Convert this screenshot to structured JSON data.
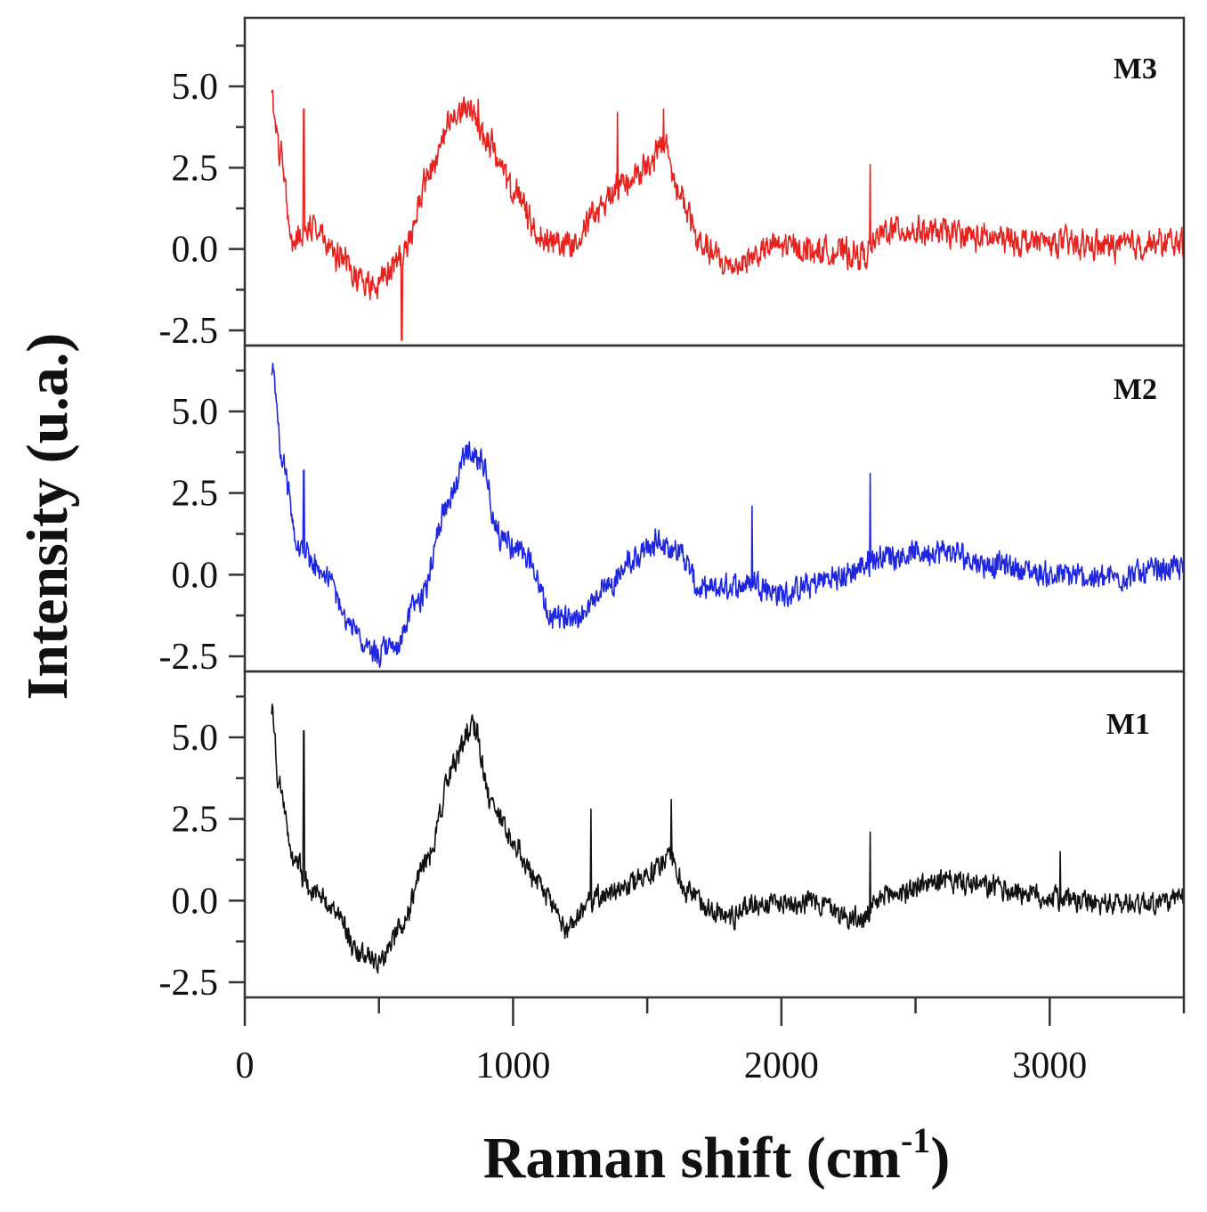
{
  "chart_data": {
    "type": "line",
    "xlabel": "Raman shift (cm",
    "xlabel_sup": "-1",
    "xlabel_end": ")",
    "ylabel": "Intensity (u.a.)",
    "xlim": [
      0,
      3500
    ],
    "x_ticks": [
      "0",
      "1000",
      "2000",
      "3000"
    ],
    "x_tick_values": [
      0,
      1000,
      2000,
      3000
    ],
    "ylim": [
      -2.5,
      6.5
    ],
    "y_ticks": [
      "-2.5",
      "0.0",
      "2.5",
      "5.0"
    ],
    "y_tick_values": [
      -2.5,
      0,
      2.5,
      5.0
    ],
    "grid": false,
    "panels": [
      {
        "label": "M3",
        "color": "#e8231f",
        "noise": 0.55,
        "spikes": [
          [
            220,
            4.3
          ],
          [
            585,
            -2.8
          ],
          [
            870,
            4.6
          ],
          [
            1390,
            4.2
          ],
          [
            1560,
            4.3
          ],
          [
            2330,
            2.6
          ]
        ],
        "anchors": [
          [
            100,
            4.6
          ],
          [
            130,
            3.0
          ],
          [
            180,
            0.2
          ],
          [
            250,
            0.8
          ],
          [
            350,
            -0.3
          ],
          [
            480,
            -1.2
          ],
          [
            580,
            -0.3
          ],
          [
            700,
            2.5
          ],
          [
            780,
            4.0
          ],
          [
            830,
            4.4
          ],
          [
            900,
            3.4
          ],
          [
            1000,
            1.8
          ],
          [
            1100,
            0.4
          ],
          [
            1200,
            0.1
          ],
          [
            1300,
            1.0
          ],
          [
            1400,
            2.0
          ],
          [
            1500,
            2.5
          ],
          [
            1560,
            3.2
          ],
          [
            1620,
            1.7
          ],
          [
            1700,
            0.1
          ],
          [
            1800,
            -0.5
          ],
          [
            2000,
            0.1
          ],
          [
            2200,
            -0.1
          ],
          [
            2300,
            -0.2
          ],
          [
            2400,
            0.6
          ],
          [
            2600,
            0.5
          ],
          [
            2800,
            0.3
          ],
          [
            3000,
            0.2
          ],
          [
            3200,
            0.1
          ],
          [
            3500,
            0.2
          ]
        ]
      },
      {
        "label": "M2",
        "color": "#1f26e0",
        "noise": 0.5,
        "spikes": [
          [
            220,
            3.2
          ],
          [
            1890,
            2.1
          ],
          [
            2330,
            3.1
          ]
        ],
        "anchors": [
          [
            100,
            6.3
          ],
          [
            140,
            3.5
          ],
          [
            200,
            0.8
          ],
          [
            300,
            0.0
          ],
          [
            400,
            -1.6
          ],
          [
            480,
            -2.5
          ],
          [
            560,
            -2.2
          ],
          [
            650,
            -0.8
          ],
          [
            750,
            2.0
          ],
          [
            830,
            3.8
          ],
          [
            880,
            3.5
          ],
          [
            950,
            1.2
          ],
          [
            1050,
            0.5
          ],
          [
            1150,
            -1.4
          ],
          [
            1250,
            -1.2
          ],
          [
            1350,
            -0.3
          ],
          [
            1450,
            0.5
          ],
          [
            1550,
            1.0
          ],
          [
            1620,
            0.7
          ],
          [
            1700,
            -0.5
          ],
          [
            1800,
            -0.4
          ],
          [
            1900,
            -0.2
          ],
          [
            2000,
            -0.6
          ],
          [
            2200,
            -0.1
          ],
          [
            2400,
            0.6
          ],
          [
            2600,
            0.7
          ],
          [
            2800,
            0.3
          ],
          [
            3000,
            0.0
          ],
          [
            3200,
            -0.1
          ],
          [
            3500,
            0.2
          ]
        ]
      },
      {
        "label": "M1",
        "color": "#111111",
        "noise": 0.45,
        "spikes": [
          [
            220,
            5.2
          ],
          [
            1290,
            2.8
          ],
          [
            1590,
            3.1
          ],
          [
            2330,
            2.1
          ],
          [
            3040,
            1.5
          ]
        ],
        "anchors": [
          [
            100,
            5.8
          ],
          [
            130,
            3.5
          ],
          [
            180,
            1.3
          ],
          [
            250,
            0.3
          ],
          [
            350,
            -0.5
          ],
          [
            430,
            -1.7
          ],
          [
            500,
            -1.9
          ],
          [
            580,
            -0.9
          ],
          [
            680,
            1.3
          ],
          [
            780,
            4.2
          ],
          [
            850,
            5.4
          ],
          [
            920,
            3.0
          ],
          [
            1000,
            1.8
          ],
          [
            1100,
            0.4
          ],
          [
            1200,
            -0.8
          ],
          [
            1300,
            0.0
          ],
          [
            1400,
            0.5
          ],
          [
            1500,
            0.7
          ],
          [
            1580,
            1.4
          ],
          [
            1650,
            0.2
          ],
          [
            1800,
            -0.5
          ],
          [
            1900,
            -0.1
          ],
          [
            2100,
            0.0
          ],
          [
            2300,
            -0.6
          ],
          [
            2400,
            0.2
          ],
          [
            2600,
            0.6
          ],
          [
            2800,
            0.4
          ],
          [
            3000,
            0.1
          ],
          [
            3200,
            -0.1
          ],
          [
            3500,
            0.0
          ]
        ]
      }
    ]
  }
}
